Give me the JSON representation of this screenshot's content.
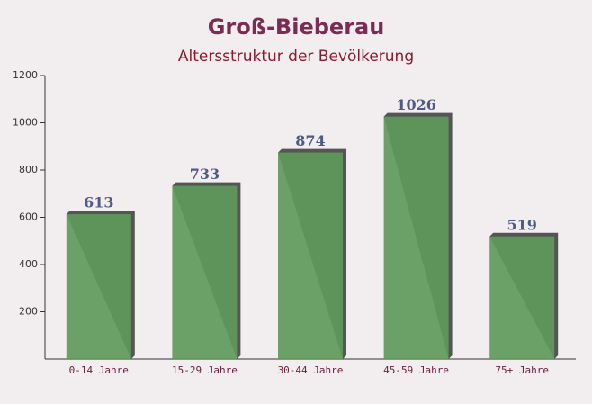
{
  "chart_data": {
    "type": "bar",
    "title": "Groß-Bieberau",
    "subtitle": "Altersstruktur der Bevölkerung",
    "categories": [
      "0-14 Jahre",
      "15-29 Jahre",
      "30-44 Jahre",
      "45-59 Jahre",
      "75+ Jahre"
    ],
    "values": [
      613,
      733,
      874,
      1026,
      519
    ],
    "color": "#5f9a5a",
    "ylim": [
      0,
      1200
    ],
    "yticks": [
      200,
      400,
      600,
      800,
      1000,
      1200
    ],
    "grid": false
  }
}
